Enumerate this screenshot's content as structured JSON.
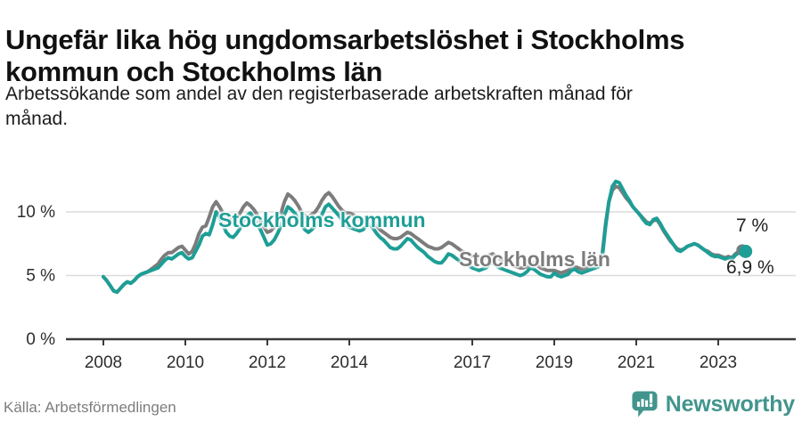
{
  "header": {
    "title_line1": "Ungefär lika hög ungdomsarbetslöshet i Stockholms",
    "title_line2": "kommun och Stockholms län",
    "subtitle_line1": "Arbetssökande som andel av den registerbaserade arbetskraften månad för",
    "subtitle_line2": "månad."
  },
  "footer": {
    "source": "Källa: Arbetsförmedlingen",
    "brand": "Newsworthy"
  },
  "colors": {
    "kommun": "#1d9e96",
    "lan": "#7c7c7c",
    "axis": "#3a3a3a",
    "grid": "#dcdcdc",
    "tick_text": "#2d2d2d",
    "brand": "#42958d",
    "background": "#ffffff"
  },
  "chart_data": {
    "type": "line",
    "unit": "%",
    "x_start": {
      "year": 2008,
      "month": 1
    },
    "x_interval": "monthly",
    "ylim": [
      0,
      13
    ],
    "grid": "horizontal",
    "legend_position": "inline-labels",
    "yticks": [
      {
        "v": 0,
        "label": "0 %"
      },
      {
        "v": 5,
        "label": "5 %"
      },
      {
        "v": 10,
        "label": "10 %"
      }
    ],
    "xticks": [
      2008,
      2010,
      2012,
      2014,
      2017,
      2019,
      2021,
      2023
    ],
    "annotations": {
      "kommun_label": "Stockholms kommun",
      "lan_label": "Stockholms län",
      "end_top": "7 %",
      "end_bottom": "6,9 %"
    },
    "series": [
      {
        "name": "Stockholms län",
        "color": "#7c7c7c",
        "end_label": "7 %",
        "end_value": 7.0,
        "values": [
          4.9,
          4.6,
          4.2,
          3.8,
          3.7,
          4.0,
          4.3,
          4.5,
          4.4,
          4.6,
          4.9,
          5.1,
          5.2,
          5.3,
          5.5,
          5.7,
          5.9,
          6.3,
          6.6,
          6.8,
          6.8,
          7.0,
          7.2,
          7.3,
          7.0,
          6.7,
          6.9,
          7.5,
          8.3,
          8.8,
          8.9,
          9.6,
          10.4,
          10.8,
          10.4,
          9.9,
          9.6,
          9.4,
          9.3,
          9.5,
          9.9,
          10.4,
          10.7,
          10.5,
          10.2,
          9.8,
          9.3,
          8.8,
          8.4,
          8.5,
          8.8,
          9.3,
          9.9,
          10.8,
          11.4,
          11.2,
          10.9,
          10.5,
          10.0,
          9.7,
          9.6,
          9.8,
          10.0,
          10.4,
          10.9,
          11.3,
          11.5,
          11.2,
          10.8,
          10.4,
          10.1,
          9.9,
          9.9,
          9.8,
          9.6,
          9.4,
          9.4,
          9.6,
          9.6,
          9.3,
          8.9,
          8.6,
          8.4,
          8.2,
          8.0,
          7.9,
          7.9,
          8.0,
          8.2,
          8.4,
          8.3,
          8.1,
          7.9,
          7.7,
          7.5,
          7.3,
          7.2,
          7.1,
          7.1,
          7.2,
          7.4,
          7.6,
          7.5,
          7.3,
          7.1,
          6.9,
          6.8,
          6.7,
          6.5,
          6.4,
          6.3,
          6.3,
          6.4,
          6.6,
          6.7,
          6.5,
          6.3,
          6.2,
          6.1,
          6.0,
          5.8,
          5.7,
          5.6,
          5.6,
          5.7,
          5.9,
          6.0,
          5.8,
          5.6,
          5.5,
          5.4,
          5.4,
          5.4,
          5.3,
          5.2,
          5.3,
          5.4,
          5.6,
          5.7,
          5.6,
          5.5,
          5.6,
          5.7,
          5.8,
          5.9,
          6.0,
          6.6,
          9.0,
          10.8,
          11.7,
          12.0,
          11.9,
          11.5,
          11.1,
          10.8,
          10.4,
          10.1,
          9.8,
          9.5,
          9.2,
          9.1,
          9.3,
          9.4,
          9.0,
          8.5,
          8.1,
          7.7,
          7.4,
          7.1,
          7.0,
          7.1,
          7.3,
          7.4,
          7.5,
          7.4,
          7.2,
          7.0,
          6.9,
          6.7,
          6.6,
          6.6,
          6.5,
          6.4,
          6.5,
          6.4,
          6.7,
          6.9,
          7.0
        ]
      },
      {
        "name": "Stockholms kommun",
        "color": "#1d9e96",
        "end_label": "6,9 %",
        "end_value": 6.9,
        "values": [
          4.9,
          4.6,
          4.2,
          3.8,
          3.7,
          4.0,
          4.3,
          4.5,
          4.4,
          4.6,
          4.9,
          5.1,
          5.2,
          5.3,
          5.4,
          5.5,
          5.6,
          5.9,
          6.2,
          6.4,
          6.3,
          6.5,
          6.7,
          6.8,
          6.5,
          6.3,
          6.4,
          6.9,
          7.4,
          8.1,
          8.3,
          8.2,
          9.0,
          10.0,
          9.6,
          9.0,
          8.4,
          8.1,
          8.0,
          8.3,
          8.7,
          9.3,
          9.7,
          9.9,
          9.6,
          9.0,
          8.6,
          8.0,
          7.4,
          7.5,
          7.8,
          8.3,
          8.9,
          9.8,
          10.4,
          10.2,
          9.9,
          9.5,
          9.0,
          8.6,
          8.4,
          8.6,
          8.9,
          9.3,
          9.8,
          10.4,
          10.6,
          10.3,
          10.0,
          9.7,
          9.3,
          9.0,
          8.8,
          8.7,
          8.6,
          8.5,
          8.6,
          8.9,
          9.0,
          8.7,
          8.3,
          8.0,
          7.8,
          7.5,
          7.2,
          7.1,
          7.1,
          7.3,
          7.6,
          7.9,
          7.8,
          7.5,
          7.2,
          7.0,
          6.8,
          6.5,
          6.3,
          6.1,
          6.0,
          6.0,
          6.3,
          6.7,
          6.6,
          6.4,
          6.2,
          6.0,
          5.9,
          5.8,
          5.6,
          5.5,
          5.4,
          5.5,
          5.6,
          5.9,
          6.0,
          5.8,
          5.6,
          5.5,
          5.4,
          5.3,
          5.2,
          5.1,
          5.0,
          5.1,
          5.3,
          5.6,
          5.5,
          5.3,
          5.1,
          5.0,
          4.9,
          4.9,
          5.2,
          5.0,
          4.9,
          5.0,
          5.1,
          5.4,
          5.5,
          5.3,
          5.2,
          5.3,
          5.4,
          5.5,
          5.6,
          5.7,
          6.3,
          8.8,
          10.8,
          12.0,
          12.4,
          12.3,
          11.8,
          11.3,
          10.9,
          10.4,
          10.1,
          9.8,
          9.4,
          9.1,
          9.0,
          9.4,
          9.5,
          9.1,
          8.6,
          8.2,
          7.8,
          7.4,
          7.0,
          6.9,
          7.1,
          7.3,
          7.4,
          7.5,
          7.4,
          7.2,
          7.0,
          6.8,
          6.6,
          6.5,
          6.5,
          6.4,
          6.3,
          6.4,
          6.3,
          6.6,
          6.8,
          6.9,
          6.9
        ]
      }
    ]
  }
}
